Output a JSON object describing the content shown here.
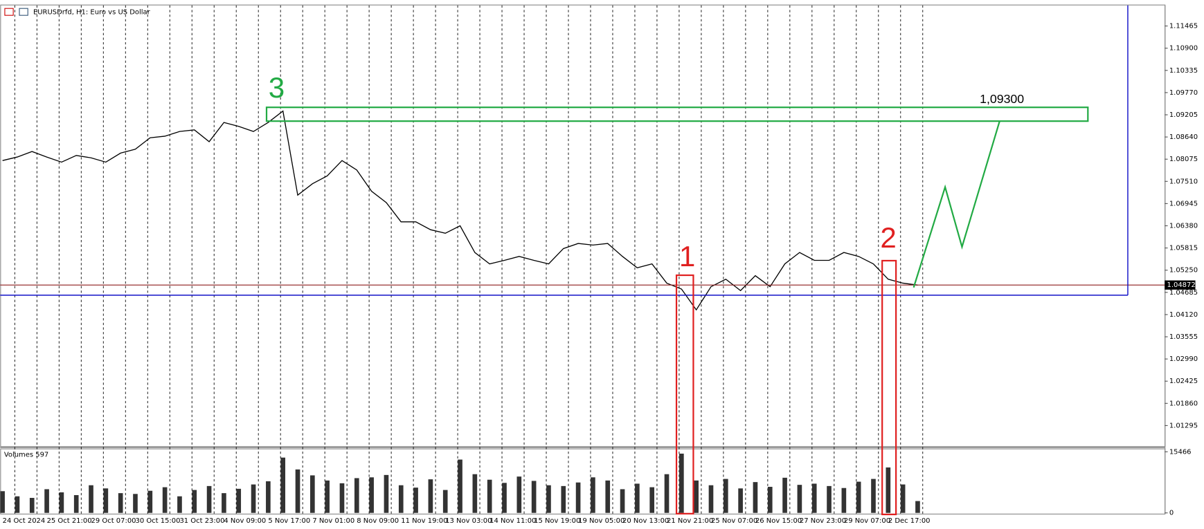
{
  "window_title": "EURUSDrfd, H1:  Euro vs US Dollar",
  "chart_data": [
    {
      "type": "line",
      "categories": [
        "24 Oct 2024",
        null,
        null,
        "25 Oct 21:00",
        null,
        null,
        "29 Oct 07:00",
        null,
        null,
        "30 Oct 15:00",
        null,
        null,
        "31 Oct 23:00",
        null,
        null,
        "4 Nov 09:00",
        null,
        null,
        "5 Nov 17:00",
        null,
        null,
        "7 Nov 01:00",
        null,
        null,
        "8 Nov 09:00",
        null,
        null,
        "11 Nov 19:00",
        null,
        null,
        "13 Nov 03:00",
        null,
        null,
        "14 Nov 11:00",
        null,
        null,
        "15 Nov 19:00",
        null,
        null,
        "19 Nov 05:00",
        null,
        null,
        "20 Nov 13:00",
        null,
        null,
        "21 Nov 21:00",
        null,
        null,
        "25 Nov 07:00",
        null,
        null,
        "26 Nov 15:00",
        null,
        null,
        "27 Nov 23:00",
        null,
        null,
        "29 Nov 07:00",
        null,
        null,
        "2 Dec 17:00",
        null,
        null
      ],
      "series": [
        {
          "name": "EURUSDrfd",
          "color": "#000000",
          "values": [
            1.0804,
            1.0813,
            1.0827,
            1.0813,
            1.08,
            1.0817,
            1.0811,
            1.08,
            1.0823,
            1.0833,
            1.0862,
            1.0866,
            1.0878,
            1.0882,
            1.0852,
            1.0901,
            1.0891,
            1.0878,
            1.0901,
            1.093,
            1.0716,
            1.0745,
            1.0765,
            1.0804,
            1.078,
            1.0726,
            1.0697,
            1.0648,
            1.0648,
            1.0628,
            1.0619,
            1.0638,
            1.057,
            1.0541,
            1.055,
            1.056,
            1.055,
            1.0541,
            1.058,
            1.0593,
            1.0589,
            1.0593,
            1.056,
            1.0531,
            1.0541,
            1.0492,
            1.0477,
            1.0424,
            1.0483,
            1.0502,
            1.0473,
            1.0511,
            1.0483,
            1.0541,
            1.057,
            1.055,
            1.055,
            1.057,
            1.056,
            1.0541,
            1.0502,
            1.0492,
            1.0487
          ]
        }
      ],
      "ylim": [
        1.0077,
        1.1199
      ],
      "yticks": [
        1.11465,
        {
          "value": 1.109,
          "label": "1.10900"
        },
        1.10335,
        {
          "value": 1.0977,
          "label": "1.09770"
        },
        1.09205,
        {
          "value": 1.0864,
          "label": "1.08640"
        },
        1.08075,
        {
          "value": 1.0751,
          "label": "1.07510"
        },
        1.06945,
        {
          "value": 1.0638,
          "label": "1.06380"
        },
        1.05815,
        {
          "value": 1.0525,
          "label": "1.05250"
        },
        1.04685,
        {
          "value": 1.0412,
          "label": "1.04120"
        },
        1.03555,
        {
          "value": 1.0299,
          "label": "1.02990"
        },
        1.02425,
        {
          "value": 1.0186,
          "label": "1.01860"
        },
        1.01295
      ],
      "current_price": 1.04872,
      "grid": true,
      "annotations": [
        "3",
        "1",
        "2",
        "1,09300"
      ]
    },
    {
      "type": "bar",
      "title": "Volumes 597",
      "color": "#333333",
      "values": [
        5500,
        4200,
        3800,
        6000,
        5200,
        4500,
        7000,
        6200,
        5000,
        4800,
        5600,
        6500,
        4200,
        5800,
        6800,
        5000,
        6100,
        7200,
        8000,
        14000,
        11000,
        9500,
        8200,
        7500,
        8800,
        9000,
        9600,
        7000,
        6400,
        8500,
        5800,
        13500,
        9800,
        8400,
        7600,
        9200,
        8100,
        7000,
        6800,
        7700,
        9000,
        8200,
        6000,
        7400,
        6500,
        9800,
        15000,
        8200,
        7000,
        8600,
        6200,
        7800,
        6600,
        8900,
        7100,
        7400,
        6800,
        6300,
        7900,
        8600,
        11500,
        7200,
        3000
      ],
      "ylim": [
        0,
        16300
      ],
      "yticks": [
        0,
        15466
      ]
    }
  ]
}
